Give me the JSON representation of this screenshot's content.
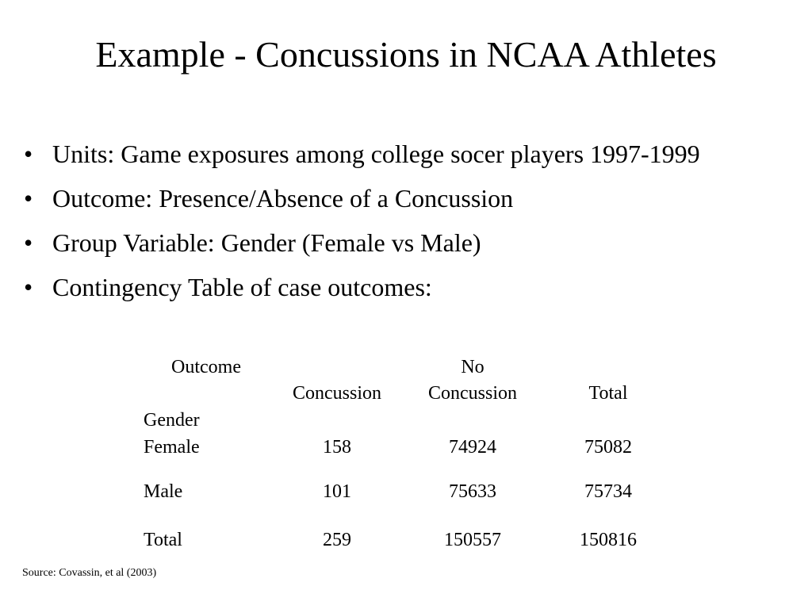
{
  "slide": {
    "title": "Example - Concussions in NCAA Athletes",
    "bullets": [
      "Units: Game exposures among college socer players 1997-1999",
      "Outcome: Presence/Absence of a Concussion",
      "Group Variable: Gender (Female vs Male)",
      "Contingency Table of case outcomes:"
    ],
    "bullet_glyph": "•",
    "table": {
      "outcome_label": "Outcome",
      "gender_label": "Gender",
      "col_concussion": "Concussion",
      "col_no_line1": "No",
      "col_no_line2": "Concussion",
      "col_total": "Total",
      "rows": [
        {
          "label": "Female",
          "concussion": "158",
          "no_concussion": "74924",
          "total": "75082"
        },
        {
          "label": "Male",
          "concussion": "101",
          "no_concussion": "75633",
          "total": "75734"
        },
        {
          "label": "Total",
          "concussion": "259",
          "no_concussion": "150557",
          "total": "150816"
        }
      ]
    },
    "source": "Source: Covassin, et al (2003)"
  }
}
